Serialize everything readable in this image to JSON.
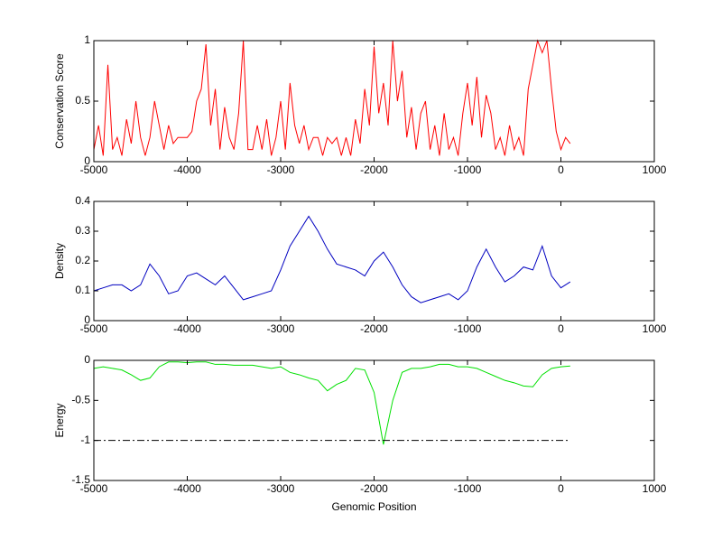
{
  "chart_data": [
    {
      "type": "line",
      "ylabel": "Conservation Score",
      "xlim": [
        -5000,
        1000
      ],
      "xticks": [
        -5000,
        -4000,
        -3000,
        -2000,
        -1000,
        0,
        1000
      ],
      "ylim": [
        0,
        1
      ],
      "yticks": [
        0,
        0.5,
        1
      ],
      "series": [
        {
          "color": "#ff0000",
          "x": [
            -5000,
            -4950,
            -4900,
            -4850,
            -4800,
            -4750,
            -4700,
            -4650,
            -4600,
            -4550,
            -4500,
            -4450,
            -4400,
            -4350,
            -4300,
            -4250,
            -4200,
            -4150,
            -4100,
            -4050,
            -4000,
            -3950,
            -3900,
            -3850,
            -3800,
            -3750,
            -3700,
            -3650,
            -3600,
            -3550,
            -3500,
            -3450,
            -3400,
            -3350,
            -3300,
            -3250,
            -3200,
            -3150,
            -3100,
            -3050,
            -3000,
            -2950,
            -2900,
            -2850,
            -2800,
            -2750,
            -2700,
            -2650,
            -2600,
            -2550,
            -2500,
            -2450,
            -2400,
            -2350,
            -2300,
            -2250,
            -2200,
            -2150,
            -2100,
            -2050,
            -2000,
            -1950,
            -1900,
            -1850,
            -1800,
            -1750,
            -1700,
            -1650,
            -1600,
            -1550,
            -1500,
            -1450,
            -1400,
            -1350,
            -1300,
            -1250,
            -1200,
            -1150,
            -1100,
            -1050,
            -1000,
            -950,
            -900,
            -850,
            -800,
            -750,
            -700,
            -650,
            -600,
            -550,
            -500,
            -450,
            -400,
            -350,
            -300,
            -250,
            -200,
            -150,
            -100,
            -50,
            0,
            50,
            100
          ],
          "values": [
            0.1,
            0.3,
            0.05,
            0.8,
            0.1,
            0.2,
            0.05,
            0.35,
            0.15,
            0.5,
            0.2,
            0.05,
            0.2,
            0.5,
            0.3,
            0.1,
            0.3,
            0.15,
            0.2,
            0.2,
            0.2,
            0.25,
            0.5,
            0.6,
            0.97,
            0.3,
            0.6,
            0.1,
            0.45,
            0.2,
            0.1,
            0.4,
            1.0,
            0.1,
            0.1,
            0.3,
            0.1,
            0.35,
            0.05,
            0.2,
            0.5,
            0.1,
            0.65,
            0.3,
            0.15,
            0.3,
            0.1,
            0.2,
            0.2,
            0.05,
            0.2,
            0.15,
            0.2,
            0.05,
            0.2,
            0.05,
            0.35,
            0.15,
            0.6,
            0.3,
            0.95,
            0.4,
            0.65,
            0.3,
            1.0,
            0.5,
            0.75,
            0.2,
            0.45,
            0.1,
            0.4,
            0.5,
            0.1,
            0.3,
            0.05,
            0.4,
            0.1,
            0.2,
            0.05,
            0.4,
            0.65,
            0.3,
            0.7,
            0.2,
            0.55,
            0.4,
            0.1,
            0.2,
            0.05,
            0.3,
            0.1,
            0.2,
            0.05,
            0.6,
            0.8,
            1.0,
            0.9,
            1.0,
            0.6,
            0.25,
            0.1,
            0.2,
            0.15
          ]
        }
      ]
    },
    {
      "type": "line",
      "ylabel": "Density",
      "xlim": [
        -5000,
        1000
      ],
      "xticks": [
        -5000,
        -4000,
        -3000,
        -2000,
        -1000,
        0,
        1000
      ],
      "ylim": [
        0,
        0.4
      ],
      "yticks": [
        0,
        0.1,
        0.2,
        0.3,
        0.4
      ],
      "series": [
        {
          "color": "#0000c0",
          "x": [
            -5000,
            -4900,
            -4800,
            -4700,
            -4600,
            -4500,
            -4400,
            -4300,
            -4200,
            -4100,
            -4000,
            -3900,
            -3800,
            -3700,
            -3600,
            -3500,
            -3400,
            -3300,
            -3200,
            -3100,
            -3000,
            -2900,
            -2800,
            -2700,
            -2600,
            -2500,
            -2400,
            -2300,
            -2200,
            -2100,
            -2000,
            -1900,
            -1800,
            -1700,
            -1600,
            -1500,
            -1400,
            -1300,
            -1200,
            -1100,
            -1000,
            -900,
            -800,
            -700,
            -600,
            -500,
            -400,
            -300,
            -200,
            -100,
            0,
            100
          ],
          "values": [
            0.1,
            0.11,
            0.12,
            0.12,
            0.1,
            0.12,
            0.19,
            0.15,
            0.09,
            0.1,
            0.15,
            0.16,
            0.14,
            0.12,
            0.15,
            0.11,
            0.07,
            0.08,
            0.09,
            0.1,
            0.17,
            0.25,
            0.3,
            0.35,
            0.3,
            0.24,
            0.19,
            0.18,
            0.17,
            0.15,
            0.2,
            0.23,
            0.18,
            0.12,
            0.08,
            0.06,
            0.07,
            0.08,
            0.09,
            0.07,
            0.1,
            0.18,
            0.24,
            0.18,
            0.13,
            0.15,
            0.18,
            0.17,
            0.25,
            0.15,
            0.11,
            0.13
          ]
        }
      ]
    },
    {
      "type": "line",
      "ylabel": "Energy",
      "xlabel": "Genomic Position",
      "xlim": [
        -5000,
        1000
      ],
      "xticks": [
        -5000,
        -4000,
        -3000,
        -2000,
        -1000,
        0,
        1000
      ],
      "ylim": [
        -1.5,
        0
      ],
      "yticks": [
        -1.5,
        -1,
        -0.5,
        0
      ],
      "series": [
        {
          "color": "#00e000",
          "x": [
            -5000,
            -4900,
            -4800,
            -4700,
            -4600,
            -4500,
            -4400,
            -4300,
            -4200,
            -4100,
            -4000,
            -3900,
            -3800,
            -3700,
            -3600,
            -3500,
            -3400,
            -3300,
            -3200,
            -3100,
            -3000,
            -2900,
            -2800,
            -2700,
            -2600,
            -2500,
            -2400,
            -2300,
            -2200,
            -2100,
            -2000,
            -1900,
            -1800,
            -1700,
            -1600,
            -1500,
            -1400,
            -1300,
            -1200,
            -1100,
            -1000,
            -900,
            -800,
            -700,
            -600,
            -500,
            -400,
            -300,
            -200,
            -100,
            0,
            100
          ],
          "values": [
            -0.1,
            -0.08,
            -0.1,
            -0.12,
            -0.18,
            -0.25,
            -0.22,
            -0.08,
            -0.02,
            -0.02,
            -0.03,
            -0.02,
            -0.02,
            -0.05,
            -0.05,
            -0.06,
            -0.06,
            -0.06,
            -0.08,
            -0.1,
            -0.08,
            -0.15,
            -0.18,
            -0.22,
            -0.25,
            -0.38,
            -0.3,
            -0.25,
            -0.1,
            -0.12,
            -0.4,
            -1.05,
            -0.5,
            -0.15,
            -0.1,
            -0.1,
            -0.08,
            -0.05,
            -0.05,
            -0.08,
            -0.08,
            -0.1,
            -0.15,
            -0.2,
            -0.25,
            -0.28,
            -0.32,
            -0.33,
            -0.18,
            -0.1,
            -0.08,
            -0.07
          ]
        },
        {
          "color": "#000000",
          "dash": "dashdot",
          "x": [
            -5000,
            100
          ],
          "values": [
            -1,
            -1
          ]
        }
      ]
    }
  ]
}
